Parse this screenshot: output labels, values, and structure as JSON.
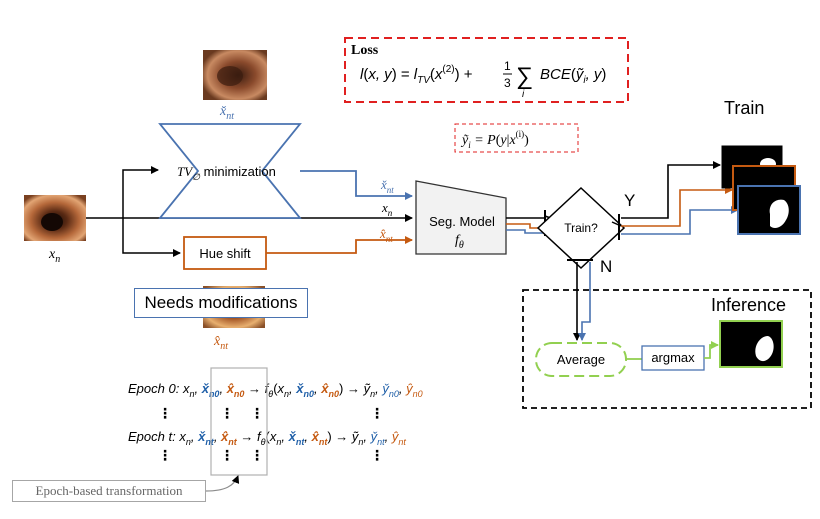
{
  "loss": {
    "title": "Loss",
    "formula": "l(x, y) = l_TV(x^(2)) + (1/3) Σ_i BCE(ỹ_i, y)"
  },
  "y_tilde_def": "ỹ_i = P(y | x^(i))",
  "nodes": {
    "tv_block": "TV_∅ minimization",
    "hue_shift": "Hue shift",
    "seg_model": "Seg. Model",
    "seg_model_sub": "f_θ",
    "train_decision": "Train?",
    "average": "Average",
    "argmax": "argmax"
  },
  "labels": {
    "x_n": "x_n",
    "x_nt_check": "x̌_nt",
    "x_nt_hat": "x̂_nt",
    "yes": "Y",
    "no": "N",
    "train": "Train",
    "inference": "Inference",
    "needs_modifications": "Needs modifications",
    "epoch_based": "Epoch-based transformation"
  },
  "epochs": {
    "epoch0": "Epoch 0:",
    "epocht": "Epoch t:",
    "dots": "⋮"
  },
  "colors": {
    "blue": "#4a73b0",
    "orange": "#c55a11",
    "red_dash": "#e02020",
    "green": "#92d050",
    "black": "#000000"
  }
}
